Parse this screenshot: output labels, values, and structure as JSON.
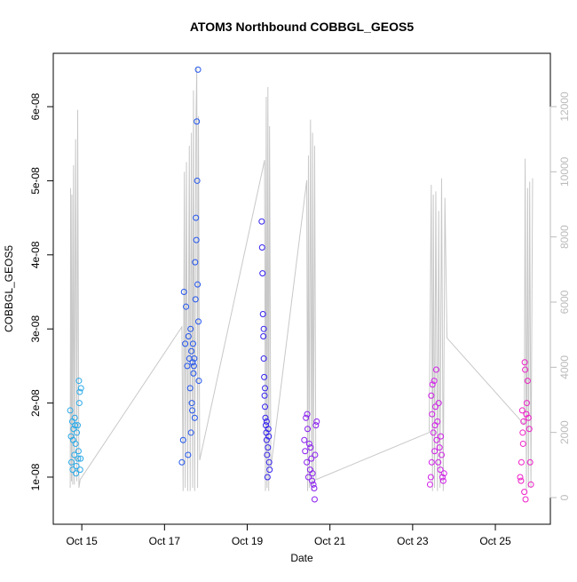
{
  "chart_data": {
    "type": "scatter",
    "title": "ATOM3 Northbound COBBGL_GEOS5",
    "x_label": "Date",
    "y_label": "COBBGL_GEOS5",
    "xlim": [
      14.31,
      26.33
    ],
    "xticks": [
      {
        "value": 15,
        "label": "Oct 15"
      },
      {
        "value": 17,
        "label": "Oct 17"
      },
      {
        "value": 19,
        "label": "Oct 19"
      },
      {
        "value": 21,
        "label": "Oct 21"
      },
      {
        "value": 23,
        "label": "Oct 23"
      },
      {
        "value": 25,
        "label": "Oct 25"
      }
    ],
    "ylim": [
      3.64e-09,
      6.72e-08
    ],
    "yticks": [
      {
        "value": 1e-08,
        "label": "1e-08"
      },
      {
        "value": 2e-08,
        "label": "2e-08"
      },
      {
        "value": 3e-08,
        "label": "3e-08"
      },
      {
        "value": 4e-08,
        "label": "4e-08"
      },
      {
        "value": 5e-08,
        "label": "5e-08"
      },
      {
        "value": 6e-08,
        "label": "6e-08"
      }
    ],
    "y2lim": [
      -818,
      13636
    ],
    "y2ticks": [
      0,
      2000,
      4000,
      6000,
      8000,
      10000,
      12000
    ],
    "series": [
      {
        "color": "#29a9e8",
        "x": [
          14.72,
          14.74,
          14.75,
          14.77,
          14.78,
          14.8,
          14.82,
          14.83,
          14.85,
          14.86,
          14.88,
          14.9,
          14.91,
          14.92,
          14.93,
          14.94,
          14.95,
          14.96,
          14.97,
          14.98,
          14.87,
          14.84,
          14.79
        ],
        "values": [
          1.9e-08,
          1.55e-08,
          1.2e-08,
          1.75e-08,
          1.1e-08,
          1.65e-08,
          1.3e-08,
          1.8e-08,
          1.45e-08,
          1.05e-08,
          1.6e-08,
          1.7e-08,
          1.25e-08,
          1.35e-08,
          2.3e-08,
          2e-08,
          2.15e-08,
          1.1e-08,
          1.25e-08,
          2.2e-08,
          1.15e-08,
          1.7e-08,
          1.5e-08
        ]
      },
      {
        "color": "#2255ee",
        "x": [
          17.42,
          17.45,
          17.47,
          17.5,
          17.52,
          17.55,
          17.57,
          17.58,
          17.6,
          17.62,
          17.63,
          17.65,
          17.67,
          17.68,
          17.7,
          17.72,
          17.73,
          17.75,
          17.76,
          17.77,
          17.78,
          17.79,
          17.8,
          17.81,
          17.82,
          17.83,
          17.64,
          17.66,
          17.69,
          17.71,
          17.74
        ],
        "values": [
          1.2e-08,
          1.5e-08,
          3.5e-08,
          2.8e-08,
          3.3e-08,
          2.5e-08,
          1.3e-08,
          2.9e-08,
          2.6e-08,
          2.2e-08,
          3e-08,
          2.7e-08,
          1.9e-08,
          2.55e-08,
          2.4e-08,
          2.6e-08,
          1.8e-08,
          3.4e-08,
          4.5e-08,
          4.2e-08,
          5.8e-08,
          5e-08,
          3.6e-08,
          6.5e-08,
          3.1e-08,
          2.3e-08,
          1.6e-08,
          2e-08,
          2.8e-08,
          2.5e-08,
          3.9e-08
        ]
      },
      {
        "color": "#3322ee",
        "x": [
          19.35,
          19.36,
          19.37,
          19.38,
          19.39,
          19.4,
          19.41,
          19.42,
          19.43,
          19.44,
          19.45,
          19.46,
          19.47,
          19.48,
          19.49,
          19.5,
          19.51,
          19.52,
          19.53,
          19.54,
          19.4,
          19.43,
          19.47
        ],
        "values": [
          4.45e-08,
          4.1e-08,
          3.75e-08,
          3.2e-08,
          2.9e-08,
          2.6e-08,
          2.35e-08,
          2.1e-08,
          1.95e-08,
          1.8e-08,
          1.7e-08,
          1.6e-08,
          1.5e-08,
          1.3e-08,
          1e-08,
          1.4e-08,
          1.65e-08,
          1.55e-08,
          1.2e-08,
          1.1e-08,
          3e-08,
          2.2e-08,
          1.75e-08
        ]
      },
      {
        "color": "#8a1ef0",
        "x": [
          20.38,
          20.4,
          20.42,
          20.44,
          20.46,
          20.48,
          20.5,
          20.52,
          20.55,
          20.57,
          20.6,
          20.62,
          20.63,
          20.64,
          20.66,
          20.68,
          20.45,
          20.53,
          20.58
        ],
        "values": [
          1.5e-08,
          1.35e-08,
          1.8e-08,
          1.2e-08,
          1.65e-08,
          1e-08,
          1.45e-08,
          1.1e-08,
          1.25e-08,
          9.5e-09,
          9e-09,
          8.5e-09,
          7e-09,
          1.3e-08,
          1.7e-08,
          1.75e-08,
          1.85e-08,
          1.4e-08,
          1.05e-08
        ]
      },
      {
        "color": "#d11ee8",
        "x": [
          23.42,
          23.44,
          23.45,
          23.47,
          23.48,
          23.5,
          23.52,
          23.53,
          23.55,
          23.57,
          23.58,
          23.6,
          23.62,
          23.63,
          23.65,
          23.67,
          23.68,
          23.7,
          23.72,
          23.74,
          23.76,
          23.46,
          23.54
        ],
        "values": [
          9e-09,
          1e-08,
          2.1e-08,
          1.85e-08,
          2.25e-08,
          1.6e-08,
          2.3e-08,
          1.35e-08,
          1.95e-08,
          2.45e-08,
          1.5e-08,
          1.75e-08,
          1.2e-08,
          2e-08,
          1.4e-08,
          1.1e-08,
          1.55e-08,
          1.3e-08,
          1e-08,
          9.5e-09,
          1.05e-08,
          1.2e-08,
          1.7e-08
        ]
      },
      {
        "color": "#ee1ec8",
        "x": [
          25.6,
          25.62,
          25.63,
          25.65,
          25.66,
          25.68,
          25.7,
          25.71,
          25.72,
          25.73,
          25.75,
          25.76,
          25.78,
          25.8,
          25.82,
          25.84,
          25.86,
          25.67
        ],
        "values": [
          1e-08,
          9.5e-09,
          1.2e-08,
          1.9e-08,
          1.6e-08,
          1.75e-08,
          8e-09,
          2.55e-08,
          2.45e-08,
          7e-09,
          1.85e-08,
          2e-08,
          2.3e-08,
          1.8e-08,
          1.65e-08,
          1.2e-08,
          9e-09,
          1.45e-08
        ]
      },
      {
        "type": "line",
        "axis": "y2",
        "color": "#c8c8c8",
        "x": [
          14.72,
          14.73,
          14.75,
          14.76,
          14.78,
          14.8,
          14.82,
          14.85,
          14.88,
          14.9,
          14.93,
          14.96,
          17.42,
          17.45,
          17.48,
          17.5,
          17.53,
          17.56,
          17.6,
          17.62,
          17.65,
          17.68,
          17.7,
          17.73,
          17.76,
          17.78,
          17.8,
          17.82,
          17.85,
          19.42,
          19.44,
          19.46,
          19.48,
          19.5,
          19.52,
          19.54,
          19.57,
          20.44,
          20.46,
          20.48,
          20.5,
          20.53,
          20.56,
          20.58,
          20.6,
          20.63,
          20.66,
          23.4,
          23.45,
          23.48,
          23.5,
          23.53,
          23.56,
          23.6,
          23.63,
          23.66,
          23.7,
          23.74,
          23.78,
          23.83,
          25.7,
          25.72,
          25.75,
          25.78,
          25.8,
          25.83,
          25.86,
          25.9
        ],
        "values": [
          300,
          9500,
          500,
          9300,
          400,
          10200,
          400,
          11000,
          500,
          11900,
          300,
          550,
          5240,
          200,
          10000,
          300,
          10300,
          200,
          10800,
          200,
          11200,
          300,
          12500,
          200,
          11500,
          13200,
          300,
          11700,
          1150,
          10360,
          200,
          12300,
          300,
          12600,
          200,
          11400,
          900,
          9740,
          200,
          10500,
          300,
          11600,
          200,
          11200,
          300,
          10800,
          550,
          2000,
          9600,
          200,
          9300,
          300,
          9400,
          200,
          8800,
          300,
          9800,
          200,
          9200,
          4900,
          2240,
          10400,
          200,
          9500,
          300,
          9700,
          300,
          9800
        ]
      }
    ]
  }
}
